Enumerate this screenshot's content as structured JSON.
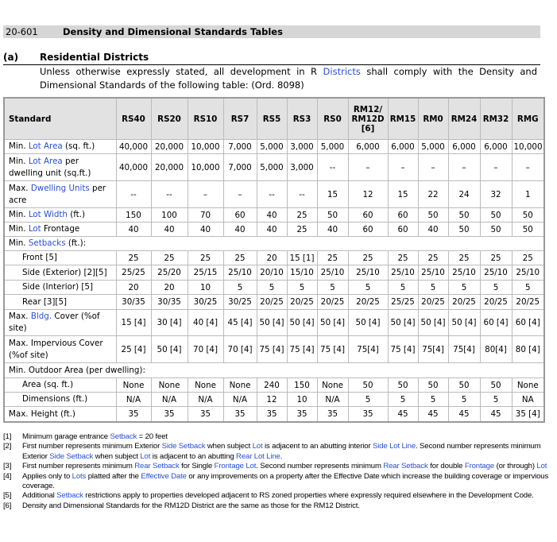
{
  "header": {
    "section": "20-601",
    "title": "Density and Dimensional Standards Tables"
  },
  "subsection": {
    "label": "(a)",
    "title": "Residential Districts"
  },
  "intro": [
    "Unless otherwise expressly stated, all development in R ",
    {
      "link": "Districts"
    },
    " shall comply with the Density and Dimensional Standards of the following table: (Ord. 8098)"
  ],
  "table": {
    "columns": [
      "Standard",
      "RS40",
      "RS20",
      "RS10",
      "RS7",
      "RS5",
      "RS3",
      "RS0",
      [
        "RM12/",
        "RM12D",
        "[6]"
      ],
      "RM15",
      "RM0",
      "RM24",
      "RM32",
      "RMG"
    ],
    "rows": [
      {
        "label": [
          "Min. ",
          {
            "link": "Lot"
          },
          " ",
          {
            "link": "Area"
          },
          " (sq. ft.)"
        ],
        "cells": [
          "40,000",
          "20,000",
          "10,000",
          "7,000",
          "5,000",
          "3,000",
          "5,000",
          "6,000",
          "6,000",
          "5,000",
          "6,000",
          "6,000",
          "10,000"
        ]
      },
      {
        "label": [
          "Min. ",
          {
            "link": "Lot"
          },
          " ",
          {
            "link": "Area"
          },
          " per dwelling unit (sq.ft.)"
        ],
        "cells": [
          "40,000",
          "20,000",
          "10,000",
          "7,000",
          "5,000",
          "3,000",
          "--",
          "–",
          "–",
          "–",
          "–",
          "–",
          "–"
        ]
      },
      {
        "label": [
          "Max. ",
          {
            "link": "Dwelling Units"
          },
          " per acre"
        ],
        "cells": [
          "--",
          "--",
          "–",
          "–",
          "--",
          "--",
          "15",
          "12",
          "15",
          "22",
          "24",
          "32",
          "1"
        ]
      },
      {
        "label": [
          "Min. ",
          {
            "link": "Lot"
          },
          " ",
          {
            "link": "Width"
          },
          " (ft.)"
        ],
        "cells": [
          "150",
          "100",
          "70",
          "60",
          "40",
          "25",
          "50",
          "60",
          "60",
          "50",
          "50",
          "50",
          "50"
        ]
      },
      {
        "label": [
          "Min. ",
          {
            "link": "Lot"
          },
          " Frontage"
        ],
        "cells": [
          "40",
          "40",
          "40",
          "40",
          "40",
          "25",
          "40",
          "60",
          "60",
          "40",
          "50",
          "50",
          "50"
        ]
      },
      {
        "label": [
          "Min. ",
          {
            "link": "Setbacks"
          },
          " (ft.):"
        ],
        "rows": [
          {
            "label": [
              "Front [5]"
            ],
            "cells": [
              "25",
              "25",
              "25",
              "25",
              "20",
              "15 [1]",
              "25",
              "25",
              "25",
              "25",
              "25",
              "25",
              "25"
            ]
          },
          {
            "label": [
              "Side (Exterior) [2][5]"
            ],
            "cells": [
              "25/25",
              "25/20",
              "25/15",
              "25/10",
              "20/10",
              "15/10",
              "25/10",
              "25/10",
              "25/10",
              "25/10",
              "25/10",
              "25/10",
              "25/10"
            ]
          },
          {
            "label": [
              "Side (Interior) [5]"
            ],
            "cells": [
              "20",
              "20",
              "10",
              "5",
              "5",
              "5",
              "5",
              "5",
              "5",
              "5",
              "5",
              "5",
              "5"
            ]
          },
          {
            "label": [
              "Rear [3][5]"
            ],
            "cells": [
              "30/35",
              "30/35",
              "30/25",
              "30/25",
              "20/25",
              "20/25",
              "20/25",
              "20/25",
              "25/25",
              "20/25",
              "20/25",
              "20/25",
              "20/25"
            ]
          }
        ]
      },
      {
        "label": [
          "Max. ",
          {
            "link": "Bldg."
          },
          " Cover (%of site)"
        ],
        "cells": [
          "15 [4]",
          "30 [4]",
          "40 [4]",
          "45 [4]",
          "50 [4]",
          "50 [4]",
          "50 [4]",
          "50 [4]",
          "50 [4]",
          "50 [4]",
          "50 [4]",
          "60 [4]",
          "60 [4]"
        ]
      },
      {
        "label": [
          "Max. Impervious Cover (%of site)"
        ],
        "cells": [
          "25 [4]",
          "50 [4]",
          "70 [4]",
          "70 [4]",
          "75 [4]",
          "75 [4]",
          "75 [4]",
          "75[4]",
          "75 [4]",
          "75[4]",
          "75[4]",
          "80[4]",
          "80 [4]"
        ]
      },
      {
        "label": [
          "Min. Outdoor Area (per dwelling):"
        ],
        "rows": [
          {
            "label": [
              "Area (sq. ft.)"
            ],
            "cells": [
              "None",
              "None",
              "None",
              "None",
              "240",
              "150",
              "None",
              "50",
              "50",
              "50",
              "50",
              "50",
              "None"
            ]
          },
          {
            "label": [
              "Dimensions (ft.)"
            ],
            "cells": [
              "N/A",
              "N/A",
              "N/A",
              "N/A",
              "12",
              "10",
              "N/A",
              "5",
              "5",
              "5",
              "5",
              "5",
              "NA"
            ]
          }
        ]
      },
      {
        "label": [
          "Max. Height (ft.)"
        ],
        "cells": [
          "35",
          "35",
          "35",
          "35",
          "35",
          "35",
          "35",
          "35",
          "45",
          "45",
          "45",
          "45",
          "35 [4]"
        ]
      }
    ]
  },
  "footnotes": [
    {
      "mark": "[1]",
      "text": [
        "Minimum garage entrance ",
        {
          "link": "Setback"
        },
        " = 20 feet"
      ]
    },
    {
      "mark": "[2]",
      "text": [
        "First number represents minimum Exterior ",
        {
          "link": "Side Setback"
        },
        " when subject ",
        {
          "link": "Lot"
        },
        " is adjacent to an abutting interior ",
        {
          "link": "Side Lot Line"
        },
        ". Second number represents minimum Exterior ",
        {
          "link": "Side Setback"
        },
        " when subject ",
        {
          "link": "Lot"
        },
        " is adjacent to an abutting ",
        {
          "link": "Rear Lot Line"
        },
        "."
      ]
    },
    {
      "mark": "[3]",
      "text": [
        "First number represents minimum ",
        {
          "link": "Rear Setback"
        },
        " for Single ",
        {
          "link": "Frontage Lot"
        },
        ".  Second number represents minimum ",
        {
          "link": "Rear Setback"
        },
        " for double ",
        {
          "link": "Frontage"
        },
        " (or through) ",
        {
          "link": "Lot"
        }
      ]
    },
    {
      "mark": "[4]",
      "text": [
        "Applies only to ",
        {
          "link": "Lots"
        },
        " platted after the ",
        {
          "link": "Effective Date"
        },
        " or any improvements on a property after the Effective Date which increase the building coverage or impervious coverage."
      ]
    },
    {
      "mark": "[5]",
      "text": [
        "Additional ",
        {
          "link": "Setback"
        },
        " restrictions apply to properties developed adjacent to RS zoned properties where expressly required elsewhere in the Development Code."
      ]
    },
    {
      "mark": "[6]",
      "text": [
        "Density and Dimensional Standards for the RM12D District are the same as those for the RM12 District."
      ]
    }
  ]
}
